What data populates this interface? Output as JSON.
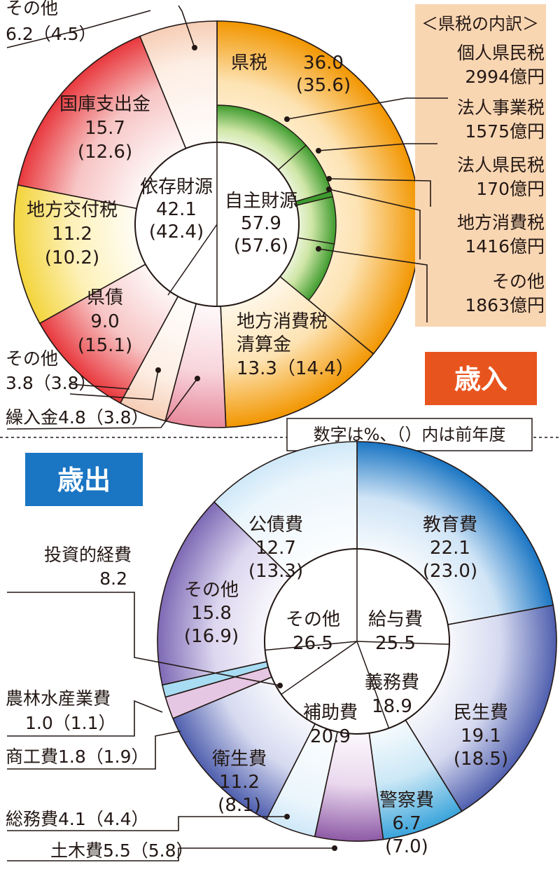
{
  "revenue": {
    "tag": "歳入",
    "note": "数字は%、（）内は前年度",
    "groups": [
      {
        "name": "依存財源",
        "value": "42.1",
        "prev": "(42.4)"
      },
      {
        "name": "自主財源",
        "value": "57.9",
        "prev": "(57.6)"
      }
    ],
    "tax_breakdown": {
      "header": "＜県税の内訳＞",
      "items": [
        {
          "name": "個人県民税",
          "amount": "2994億円"
        },
        {
          "name": "法人事業税",
          "amount": "1575億円"
        },
        {
          "name": "法人県民税",
          "amount": "170億円"
        },
        {
          "name": "地方消費税",
          "amount": "1416億円"
        },
        {
          "name": "その他",
          "amount": "1863億円"
        }
      ]
    },
    "labels": {
      "tax": {
        "name": "県税",
        "value": "36.0",
        "prev": "(35.6)"
      },
      "settlement": {
        "l1": "地方消費税",
        "l2": "清算金",
        "l3": "13.3（14.4）"
      },
      "transfer": {
        "text": "繰入金4.8（3.8）"
      },
      "other_small": {
        "l1": "その他",
        "l2": "3.8（3.8）"
      },
      "bond": {
        "name": "県債",
        "value": "9.0",
        "prev": "(15.1)"
      },
      "allocation": {
        "name": "地方交付税",
        "value": "11.2",
        "prev": "(10.2)"
      },
      "treasury": {
        "name": "国庫支出金",
        "value": "15.7",
        "prev": "(12.6)"
      },
      "other_top": {
        "l1": "その他",
        "l2": "6.2（4.5）"
      }
    }
  },
  "expenditure": {
    "tag": "歳出",
    "labels": {
      "education": {
        "name": "教育費",
        "value": "22.1",
        "prev": "(23.0)"
      },
      "welfare": {
        "name": "民生費",
        "value": "19.1",
        "prev": "(18.5)"
      },
      "police": {
        "name": "警察費",
        "value": "6.7",
        "prev": "(7.0)"
      },
      "civil": {
        "text": "土木費5.5（5.8）"
      },
      "general": {
        "text": "総務費4.1（4.4）"
      },
      "health": {
        "name": "衛生費",
        "value": "11.2",
        "prev": "(8.1)"
      },
      "commerce": {
        "text": "商工費1.8（1.9）"
      },
      "agri": {
        "l1": "農林水産業費",
        "l2": "1.0（1.1）"
      },
      "invest": {
        "l1": "投資的経費",
        "l2": "8.2"
      },
      "other": {
        "name": "その他",
        "value": "15.8",
        "prev": "(16.9)"
      },
      "debt": {
        "name": "公債費",
        "value": "12.7",
        "prev": "(13.3)"
      }
    },
    "inner": [
      {
        "name": "給与費",
        "value": "25.5"
      },
      {
        "name": "義務費",
        "value": "18.9"
      },
      {
        "name": "補助費",
        "value": "20.9"
      },
      {
        "name": "その他",
        "value": "26.5"
      }
    ]
  },
  "chart_data": [
    {
      "type": "pie",
      "title": "歳入",
      "unit": "%",
      "inner_ring": [
        {
          "name": "自主財源",
          "value": 57.9,
          "prev": 57.6
        },
        {
          "name": "依存財源",
          "value": 42.1,
          "prev": 42.4
        }
      ],
      "outer_ring": [
        {
          "name": "県税",
          "value": 36.0,
          "prev": 35.6
        },
        {
          "name": "地方消費税清算金",
          "value": 13.3,
          "prev": 14.4
        },
        {
          "name": "繰入金",
          "value": 4.8,
          "prev": 3.8
        },
        {
          "name": "その他",
          "value": 3.8,
          "prev": 3.8
        },
        {
          "name": "県債",
          "value": 9.0,
          "prev": 15.1
        },
        {
          "name": "地方交付税",
          "value": 11.2,
          "prev": 10.2
        },
        {
          "name": "国庫支出金",
          "value": 15.7,
          "prev": 12.6
        },
        {
          "name": "その他",
          "value": 6.2,
          "prev": 4.5
        }
      ],
      "tax_breakdown_oku_yen": [
        {
          "name": "個人県民税",
          "value": 2994
        },
        {
          "name": "法人事業税",
          "value": 1575
        },
        {
          "name": "法人県民税",
          "value": 170
        },
        {
          "name": "地方消費税",
          "value": 1416
        },
        {
          "name": "その他",
          "value": 1863
        }
      ],
      "colors": {
        "orange": "#f29600",
        "green": "#3e9b2e",
        "red": "#e8383d",
        "yellow": "#f3d43c",
        "pink": "#e7899b",
        "tan": "#f2c9a0"
      }
    },
    {
      "type": "pie",
      "title": "歳出",
      "unit": "%",
      "inner_ring": [
        {
          "name": "給与費",
          "value": 25.5
        },
        {
          "name": "義務費",
          "value": 18.9
        },
        {
          "name": "補助費",
          "value": 20.9
        },
        {
          "name": "投資的経費",
          "value": 8.2
        },
        {
          "name": "その他",
          "value": 26.5
        }
      ],
      "outer_ring": [
        {
          "name": "教育費",
          "value": 22.1,
          "prev": 23.0
        },
        {
          "name": "民生費",
          "value": 19.1,
          "prev": 18.5
        },
        {
          "name": "警察費",
          "value": 6.7,
          "prev": 7.0
        },
        {
          "name": "土木費",
          "value": 5.5,
          "prev": 5.8
        },
        {
          "name": "総務費",
          "value": 4.1,
          "prev": 4.4
        },
        {
          "name": "衛生費",
          "value": 11.2,
          "prev": 8.1
        },
        {
          "name": "商工費",
          "value": 1.8,
          "prev": 1.9
        },
        {
          "name": "農林水産業費",
          "value": 1.0,
          "prev": 1.1
        },
        {
          "name": "その他",
          "value": 15.8,
          "prev": 16.9
        },
        {
          "name": "公債費",
          "value": 12.7,
          "prev": 13.3
        }
      ],
      "colors": {
        "blue": "#1a75c3",
        "navy": "#4f5fae",
        "purple": "#8e5aa6",
        "violet": "#7d6ab5",
        "lightblue": "#7cc7e8",
        "cyan": "#3aa4db"
      }
    }
  ]
}
